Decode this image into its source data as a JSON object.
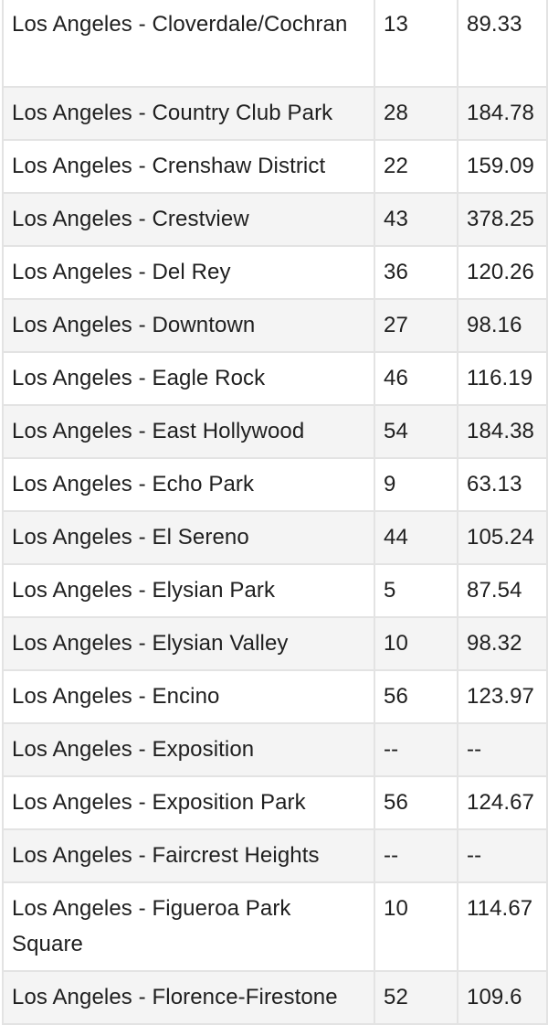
{
  "table": {
    "rows": [
      {
        "name": "Los Angeles - Cloverdale/Cochran",
        "count": "13",
        "value": "89.33",
        "wrap": true
      },
      {
        "name": "Los Angeles - Country Club Park",
        "count": "28",
        "value": "184.78"
      },
      {
        "name": "Los Angeles - Crenshaw District",
        "count": "22",
        "value": "159.09"
      },
      {
        "name": "Los Angeles - Crestview",
        "count": "43",
        "value": "378.25"
      },
      {
        "name": "Los Angeles - Del Rey",
        "count": "36",
        "value": "120.26"
      },
      {
        "name": "Los Angeles - Downtown",
        "count": "27",
        "value": "98.16"
      },
      {
        "name": "Los Angeles - Eagle Rock",
        "count": "46",
        "value": "116.19"
      },
      {
        "name": "Los Angeles - East Hollywood",
        "count": "54",
        "value": "184.38"
      },
      {
        "name": "Los Angeles - Echo Park",
        "count": "9",
        "value": "63.13"
      },
      {
        "name": "Los Angeles - El Sereno",
        "count": "44",
        "value": "105.24"
      },
      {
        "name": "Los Angeles - Elysian Park",
        "count": "5",
        "value": "87.54"
      },
      {
        "name": "Los Angeles - Elysian Valley",
        "count": "10",
        "value": "98.32"
      },
      {
        "name": "Los Angeles - Encino",
        "count": "56",
        "value": "123.97"
      },
      {
        "name": "Los Angeles - Exposition",
        "count": "--",
        "value": "--"
      },
      {
        "name": "Los Angeles - Exposition Park",
        "count": "56",
        "value": "124.67"
      },
      {
        "name": "Los Angeles - Faircrest Heights",
        "count": "--",
        "value": "--"
      },
      {
        "name": "Los Angeles - Figueroa Park Square",
        "count": "10",
        "value": "114.67",
        "wrap": true
      },
      {
        "name": "Los Angeles - Florence-Firestone",
        "count": "52",
        "value": "109.6"
      }
    ]
  }
}
